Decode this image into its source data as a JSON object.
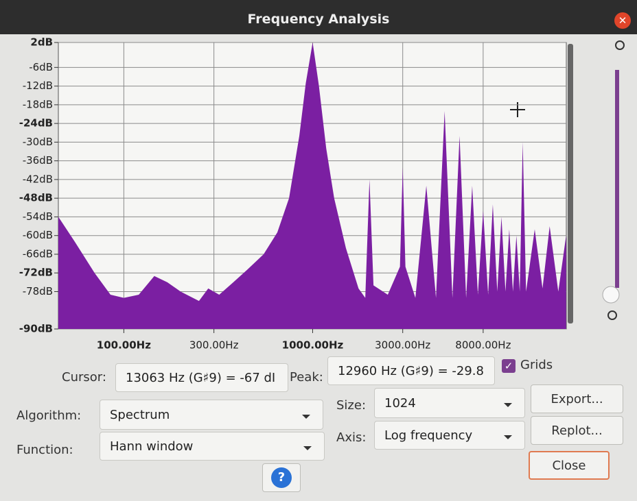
{
  "window": {
    "title": "Frequency Analysis"
  },
  "chart_data": {
    "type": "area",
    "log_x": true,
    "grid": true,
    "color": "#7b1fa2",
    "x": [
      45,
      55,
      70,
      85,
      100,
      120,
      145,
      170,
      200,
      250,
      280,
      320,
      380,
      450,
      550,
      650,
      750,
      850,
      920,
      1000,
      1080,
      1180,
      1300,
      1500,
      1750,
      1900,
      2000,
      2100,
      2500,
      2900,
      3000,
      3100,
      3500,
      4000,
      4500,
      5000,
      5500,
      6000,
      6500,
      7000,
      7500,
      8000,
      8500,
      9000,
      9500,
      10000,
      10500,
      11000,
      11500,
      12000,
      12500,
      12960,
      13500,
      15000,
      16500,
      18000,
      20000,
      22000
    ],
    "values": [
      -54,
      -62,
      -72,
      -79,
      -80,
      -79,
      -73,
      -75,
      -78,
      -81,
      -77,
      -79,
      -75,
      -71,
      -66,
      -59,
      -48,
      -28,
      -11,
      2,
      -12,
      -32,
      -48,
      -64,
      -77,
      -80,
      -42,
      -76,
      -79,
      -70,
      -38,
      -70,
      -80,
      -44,
      -80,
      -20,
      -80,
      -28,
      -80,
      -44,
      -79,
      -52,
      -79,
      -50,
      -78,
      -54,
      -78,
      -58,
      -78,
      -60,
      -78,
      -30,
      -78,
      -58,
      -77,
      -57,
      -78,
      -60
    ],
    "xlim": [
      45,
      22050
    ],
    "ylim": [
      -90,
      2
    ],
    "xticks": [
      {
        "value": 100,
        "label": "100.00Hz"
      },
      {
        "value": 300,
        "label": "300.00Hz"
      },
      {
        "value": 1000,
        "label": "1000.00Hz"
      },
      {
        "value": 3000,
        "label": "3000.00Hz"
      },
      {
        "value": 8000,
        "label": "8000.00Hz"
      }
    ],
    "yticks": [
      {
        "value": 2,
        "label": "2dB"
      },
      {
        "value": -6,
        "label": "-6dB"
      },
      {
        "value": -12,
        "label": "-12dB"
      },
      {
        "value": -18,
        "label": "-18dB"
      },
      {
        "value": -24,
        "label": "-24dB"
      },
      {
        "value": -30,
        "label": "-30dB"
      },
      {
        "value": -36,
        "label": "-36dB"
      },
      {
        "value": -42,
        "label": "-42dB"
      },
      {
        "value": -48,
        "label": "-48dB"
      },
      {
        "value": -54,
        "label": "-54dB"
      },
      {
        "value": -60,
        "label": "-60dB"
      },
      {
        "value": -66,
        "label": "-66dB"
      },
      {
        "value": -72,
        "label": "-72dB"
      },
      {
        "value": -78,
        "label": "-78dB"
      },
      {
        "value": -90,
        "label": "-90dB"
      }
    ]
  },
  "controls": {
    "cursor_label": "Cursor:",
    "cursor_value": "13063 Hz (G♯9) = -67 dI",
    "peak_label": "Peak:",
    "peak_value": "12960 Hz (G♯9) = -29.8",
    "grids_label": "Grids",
    "algorithm_label": "Algorithm:",
    "algorithm": "Spectrum",
    "size_label": "Size:",
    "size": "1024",
    "export": "Export...",
    "function_label": "Function:",
    "function": "Hann window",
    "axis_label": "Axis:",
    "axis": "Log frequency",
    "replot": "Replot...",
    "close": "Close",
    "help": "?"
  }
}
